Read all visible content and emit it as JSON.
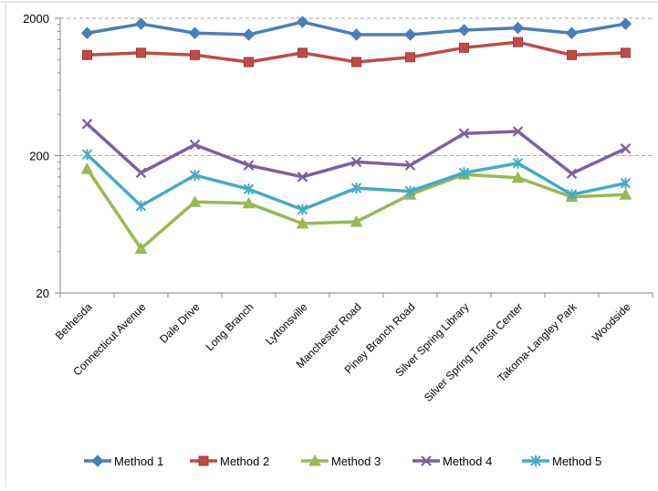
{
  "chart_data": {
    "type": "line",
    "title": "",
    "xlabel": "",
    "ylabel": "",
    "yscale": "log",
    "ylim": [
      20,
      2000
    ],
    "yticks": [
      20,
      200,
      2000
    ],
    "grid": "dashed horizontal at major ticks",
    "legend_position": "bottom",
    "categories": [
      "Bethesda",
      "Connecticut Avenue",
      "Dale Drive",
      "Long Branch",
      "Lyttonsville",
      "Manchester Road",
      "Piney Branch Road",
      "Silver Spring Library",
      "Silver Spring Transit Center",
      "Takoma-Langley Park",
      "Woodside"
    ],
    "series": [
      {
        "name": "Method 1",
        "color": "#4a7ebb",
        "marker": "diamond",
        "values": [
          1560,
          1820,
          1560,
          1520,
          1880,
          1520,
          1520,
          1640,
          1700,
          1560,
          1820
        ]
      },
      {
        "name": "Method 2",
        "color": "#be4b48",
        "marker": "square",
        "values": [
          1080,
          1120,
          1080,
          960,
          1120,
          960,
          1040,
          1220,
          1340,
          1080,
          1120
        ]
      },
      {
        "name": "Method 3",
        "color": "#98b954",
        "marker": "triangle",
        "values": [
          160,
          42,
          92,
          90,
          64,
          66,
          104,
          146,
          138,
          100,
          104
        ]
      },
      {
        "name": "Method 4",
        "color": "#7d60a0",
        "marker": "x",
        "values": [
          340,
          150,
          240,
          170,
          140,
          180,
          170,
          290,
          300,
          148,
          225
        ]
      },
      {
        "name": "Method 5",
        "color": "#46aac5",
        "marker": "asterisk",
        "values": [
          204,
          86,
          144,
          114,
          81,
          116,
          110,
          150,
          176,
          104,
          126
        ]
      }
    ]
  }
}
